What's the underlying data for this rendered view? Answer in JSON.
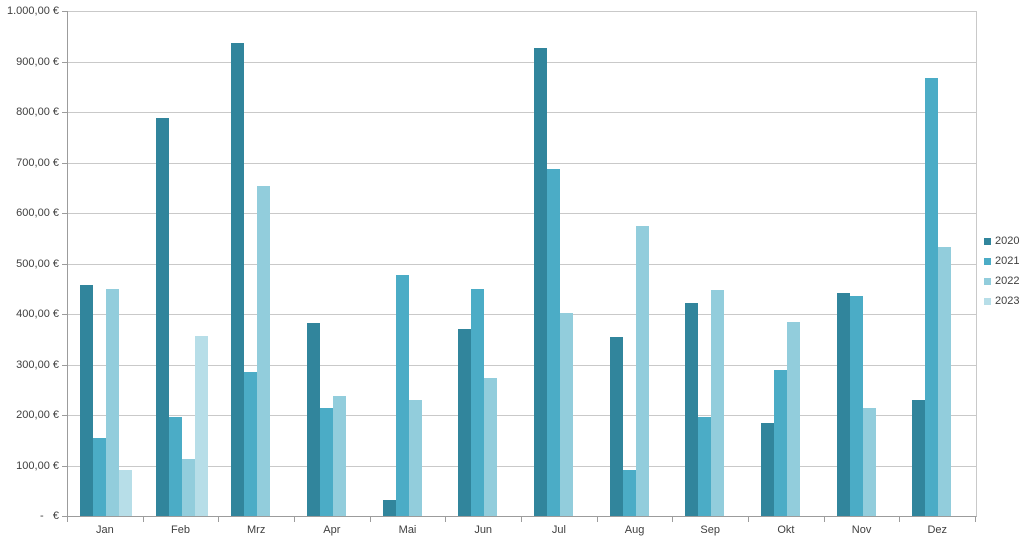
{
  "chart_data": {
    "type": "bar",
    "title": "",
    "xlabel": "",
    "ylabel": "",
    "categories": [
      "Jan",
      "Feb",
      "Mrz",
      "Apr",
      "Mai",
      "Jun",
      "Jul",
      "Aug",
      "Sep",
      "Okt",
      "Nov",
      "Dez"
    ],
    "series": [
      {
        "name": "2020",
        "color": "#31859C",
        "values": [
          457,
          788,
          937,
          383,
          31,
          370,
          927,
          355,
          422,
          185,
          441,
          229
        ]
      },
      {
        "name": "2021",
        "color": "#4BACC6",
        "values": [
          154,
          197,
          285,
          214,
          478,
          450,
          688,
          91,
          197,
          289,
          436,
          868
        ]
      },
      {
        "name": "2022",
        "color": "#92CDDC",
        "values": [
          450,
          112,
          654,
          237,
          230,
          274,
          403,
          574,
          448,
          385,
          214,
          532
        ]
      },
      {
        "name": "2023",
        "color": "#B7DEE8",
        "values": [
          92,
          357,
          0,
          0,
          0,
          0,
          0,
          0,
          0,
          0,
          0,
          0
        ]
      }
    ],
    "ylim": [
      0,
      1000
    ],
    "y_tick_step": 100,
    "y_tick_labels_top_to_bottom": [
      "1.000,00 €",
      "900,00 €",
      "800,00 €",
      "700,00 €",
      "600,00 €",
      "500,00 €",
      "400,00 €",
      "300,00 €",
      "200,00 €",
      "100,00 €",
      "-   €"
    ],
    "grid": true,
    "legend_position": "right",
    "legend_labels": [
      "2020",
      "2021",
      "2022",
      "2023"
    ]
  },
  "colors": {
    "background": "#FFFFFF",
    "gridline": "#C9C9C9",
    "axis": "#9C9C9C",
    "text": "#404040"
  }
}
